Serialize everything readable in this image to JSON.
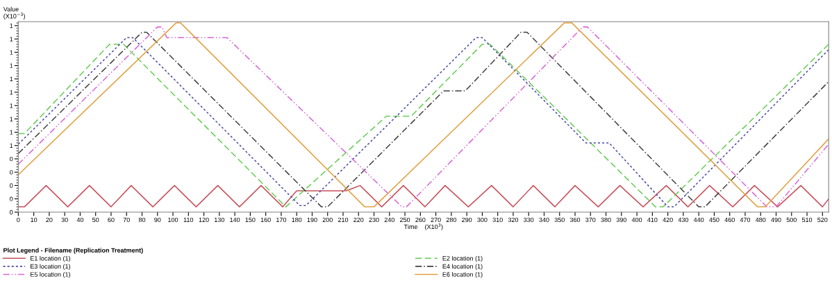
{
  "chart_data": {
    "type": "line",
    "xlabel": "Time    (X10$^{3}$)",
    "ylabel": "Value\n(X10$^{−3}$)",
    "legend_title": "Plot Legend - Filename (Replication Treatment)",
    "legend": "bottom",
    "grid": false,
    "xlim": [
      0,
      524
    ],
    "xticks": [
      0,
      10,
      20,
      30,
      40,
      50,
      60,
      70,
      80,
      90,
      100,
      110,
      120,
      130,
      140,
      150,
      160,
      170,
      180,
      190,
      200,
      210,
      220,
      230,
      240,
      250,
      260,
      270,
      280,
      290,
      300,
      310,
      320,
      330,
      340,
      350,
      360,
      370,
      380,
      390,
      400,
      410,
      420,
      430,
      440,
      450,
      460,
      470,
      480,
      490,
      500,
      510,
      520
    ],
    "ylim": [
      0,
      1.43
    ],
    "yticks": [
      {
        "value": 0,
        "label": "0"
      },
      {
        "value": 0.1,
        "label": "0"
      },
      {
        "value": 0.2,
        "label": "0"
      },
      {
        "value": 0.3,
        "label": "0"
      },
      {
        "value": 0.4,
        "label": "0"
      },
      {
        "value": 0.5,
        "label": "1"
      },
      {
        "value": 0.6,
        "label": "1"
      },
      {
        "value": 0.7,
        "label": "1"
      },
      {
        "value": 0.8,
        "label": "1"
      },
      {
        "value": 0.9,
        "label": "1"
      },
      {
        "value": 1.0,
        "label": "1"
      },
      {
        "value": 1.1,
        "label": "1"
      },
      {
        "value": 1.2,
        "label": "1"
      },
      {
        "value": 1.3,
        "label": "1"
      },
      {
        "value": 1.4,
        "label": "1"
      }
    ],
    "series": [
      {
        "name": "E1 location (1)",
        "color": "#c8505a",
        "line_style": "solid",
        "x": [
          0,
          4,
          18,
          32,
          46,
          60,
          73,
          87,
          101,
          115,
          129,
          143,
          157,
          171,
          180,
          212,
          221,
          235,
          249,
          263,
          276,
          291,
          306,
          320,
          333,
          347,
          360,
          375,
          389,
          404,
          419,
          433,
          447,
          462,
          476,
          491,
          506,
          520,
          524
        ],
        "values": [
          0.04,
          0.04,
          0.2,
          0.04,
          0.2,
          0.04,
          0.2,
          0.04,
          0.2,
          0.04,
          0.2,
          0.04,
          0.2,
          0.04,
          0.16,
          0.16,
          0.2,
          0.04,
          0.2,
          0.04,
          0.2,
          0.04,
          0.2,
          0.04,
          0.2,
          0.04,
          0.2,
          0.04,
          0.2,
          0.04,
          0.2,
          0.04,
          0.2,
          0.04,
          0.2,
          0.04,
          0.2,
          0.04,
          0.1
        ]
      },
      {
        "name": "E2 location (1)",
        "color": "#66cc55",
        "line_style": "dashed",
        "x": [
          0,
          4,
          59,
          68,
          173,
          238,
          254,
          300,
          305,
          343,
          412,
          417,
          524
        ],
        "values": [
          0.59,
          0.59,
          1.26,
          1.26,
          0.04,
          0.72,
          0.72,
          1.26,
          1.26,
          0.83,
          0.04,
          0.04,
          1.26
        ]
      },
      {
        "name": "E3 location (1)",
        "color": "#4a4aa8",
        "line_style": "dotted",
        "x": [
          0,
          70,
          74,
          182,
          186,
          296,
          300,
          367,
          382,
          420,
          424,
          524
        ],
        "values": [
          0.51,
          1.31,
          1.31,
          0.05,
          0.05,
          1.31,
          1.31,
          0.52,
          0.52,
          0.04,
          0.04,
          1.22
        ]
      },
      {
        "name": "E4 location (1)",
        "color": "#404040",
        "line_style": "dashdot",
        "x": [
          0,
          80,
          83,
          196,
          200,
          275,
          289,
          325,
          329,
          440,
          444,
          524
        ],
        "values": [
          0.44,
          1.35,
          1.35,
          0.04,
          0.04,
          0.91,
          0.91,
          1.35,
          1.35,
          0.04,
          0.04,
          0.98
        ]
      },
      {
        "name": "E5 location (1)",
        "color": "#d966d9",
        "line_style": "dashdotdot",
        "x": [
          0,
          90,
          93,
          96,
          135,
          248,
          251,
          365,
          368,
          484,
          490,
          524
        ],
        "values": [
          0.36,
          1.39,
          1.39,
          1.31,
          1.31,
          0.04,
          0.04,
          1.39,
          1.39,
          0.04,
          0.04,
          0.51
        ]
      },
      {
        "name": "E6 location (1)",
        "color": "#e0a040",
        "line_style": "solid",
        "x": [
          0,
          102,
          105,
          224,
          230,
          353,
          358,
          478,
          483,
          524
        ],
        "values": [
          0.28,
          1.42,
          1.42,
          0.04,
          0.04,
          1.42,
          1.42,
          0.04,
          0.04,
          0.55
        ]
      }
    ]
  }
}
